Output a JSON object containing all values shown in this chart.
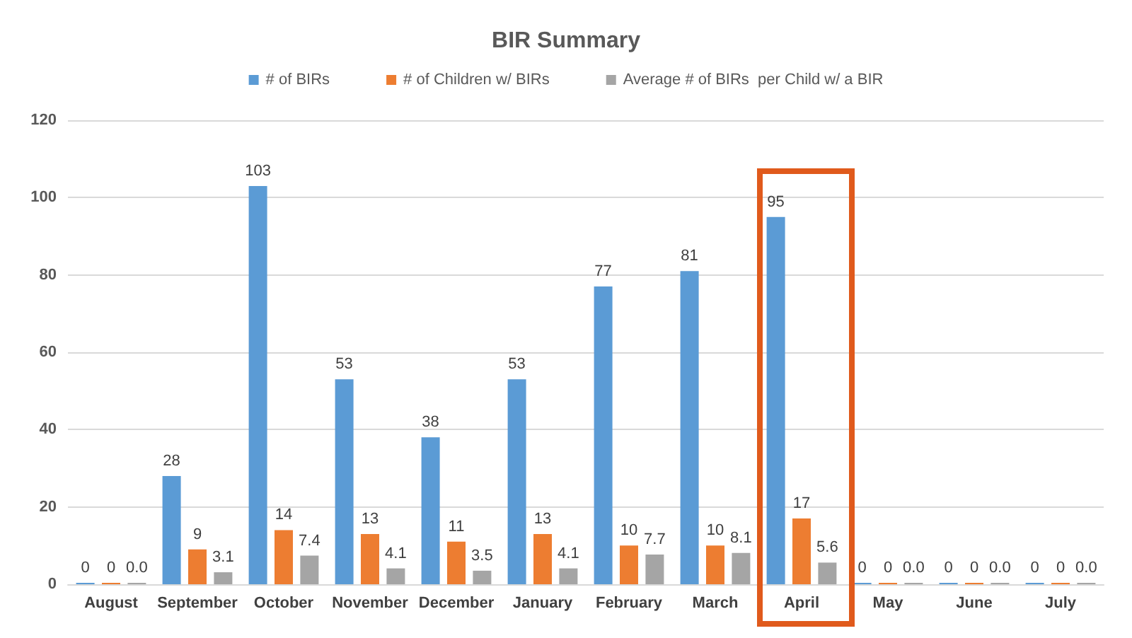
{
  "chart_data": {
    "type": "bar",
    "title": "BIR Summary",
    "categories": [
      "August",
      "September",
      "October",
      "November",
      "December",
      "January",
      "February",
      "March",
      "April",
      "May",
      "June",
      "July"
    ],
    "series": [
      {
        "name": "# of BIRs",
        "color": "#5b9bd5",
        "values": [
          0,
          28,
          103,
          53,
          38,
          53,
          77,
          81,
          95,
          0,
          0,
          0
        ],
        "value_labels": [
          "0",
          "28",
          "103",
          "53",
          "38",
          "53",
          "77",
          "81",
          "95",
          "0",
          "0",
          "0"
        ]
      },
      {
        "name": "# of Children w/ BIRs",
        "color": "#ed7d31",
        "values": [
          0,
          9,
          14,
          13,
          11,
          13,
          10,
          10,
          17,
          0,
          0,
          0
        ],
        "value_labels": [
          "0",
          "9",
          "14",
          "13",
          "11",
          "13",
          "10",
          "10",
          "17",
          "0",
          "0",
          "0"
        ]
      },
      {
        "name": "Average # of BIRs  per Child w/ a BIR",
        "color": "#a5a5a5",
        "values": [
          0,
          3.1,
          7.4,
          4.1,
          3.5,
          4.1,
          7.7,
          8.1,
          5.6,
          0,
          0,
          0
        ],
        "value_labels": [
          "0.0",
          "3.1",
          "7.4",
          "4.1",
          "3.5",
          "4.1",
          "7.7",
          "8.1",
          "5.6",
          "0.0",
          "0.0",
          "0.0"
        ]
      }
    ],
    "ylim": [
      0,
      120
    ],
    "yticks": [
      0,
      20,
      40,
      60,
      80,
      100,
      120
    ],
    "grid": "y",
    "legend": "top"
  }
}
